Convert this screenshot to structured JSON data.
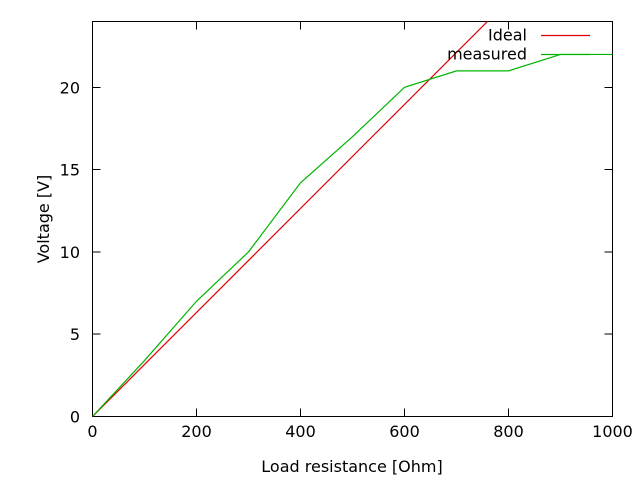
{
  "chart_data": {
    "type": "line",
    "title": "",
    "xlabel": "Load resistance [Ohm]",
    "ylabel": "Voltage [V]",
    "xlim": [
      0,
      1000
    ],
    "ylim": [
      0,
      24
    ],
    "x_ticks": [
      0,
      200,
      400,
      600,
      800,
      1000
    ],
    "y_ticks": [
      0,
      5,
      10,
      15,
      20
    ],
    "grid": false,
    "background_color": "#ffffff",
    "border_color": "#000000",
    "legend_position": "top-right-inside",
    "series": [
      {
        "name": "Ideal",
        "color": "#dd0000",
        "x": [
          0,
          1000
        ],
        "y": [
          0,
          31.6
        ],
        "note": "straight line ~31.6 mV/Ohm, clipped by top plot border near R=760 Ohm"
      },
      {
        "name": "measured",
        "color": "#00b400",
        "x": [
          0,
          100,
          200,
          300,
          400,
          500,
          600,
          700,
          800,
          900,
          1000
        ],
        "y": [
          0,
          3.4,
          7,
          10,
          14.2,
          17,
          20,
          21,
          21,
          22,
          22
        ]
      }
    ]
  }
}
